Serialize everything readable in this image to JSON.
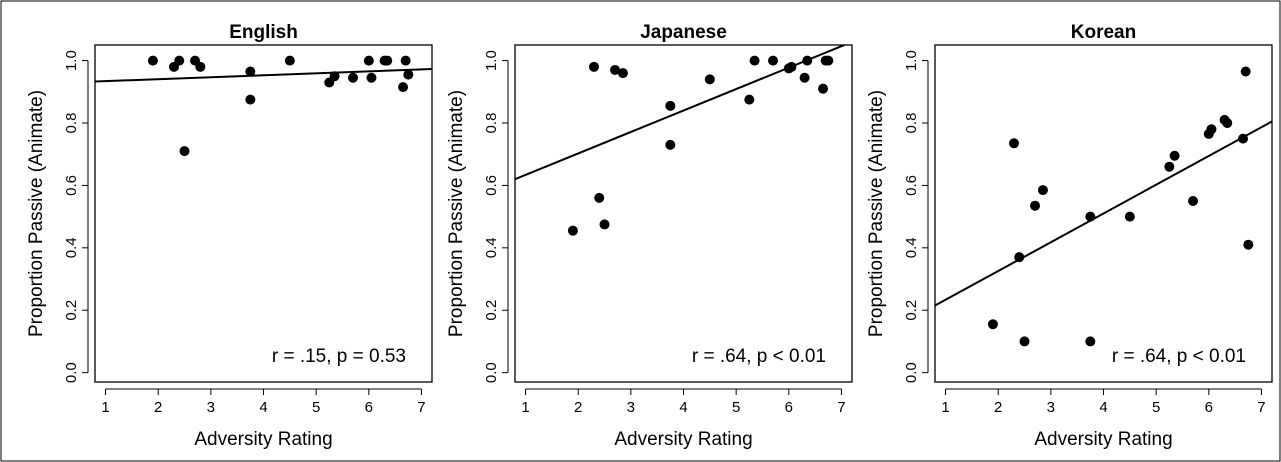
{
  "chart_data": [
    {
      "type": "scatter",
      "title": "English",
      "xlabel": "Adversity Rating",
      "ylabel": "Proportion Passive (Animate)",
      "xlim": [
        0.8,
        7.2
      ],
      "ylim": [
        -0.03,
        1.05
      ],
      "xticks": [
        "1",
        "2",
        "3",
        "4",
        "5",
        "6",
        "7"
      ],
      "yticks": [
        "0.0",
        "0.2",
        "0.4",
        "0.6",
        "0.8",
        "1.0"
      ],
      "annotation": "r = .15, p = 0.53",
      "fit": {
        "x": [
          0.8,
          7.2
        ],
        "y": [
          0.933,
          0.973
        ]
      },
      "points": [
        {
          "x": 1.9,
          "y": 1.0
        },
        {
          "x": 2.3,
          "y": 0.98
        },
        {
          "x": 2.4,
          "y": 1.0
        },
        {
          "x": 2.5,
          "y": 0.71
        },
        {
          "x": 2.7,
          "y": 1.0
        },
        {
          "x": 2.8,
          "y": 0.98
        },
        {
          "x": 3.75,
          "y": 0.965
        },
        {
          "x": 3.75,
          "y": 0.875
        },
        {
          "x": 4.5,
          "y": 1.0
        },
        {
          "x": 5.25,
          "y": 0.93
        },
        {
          "x": 5.35,
          "y": 0.95
        },
        {
          "x": 5.7,
          "y": 0.945
        },
        {
          "x": 6.0,
          "y": 1.0
        },
        {
          "x": 6.05,
          "y": 0.945
        },
        {
          "x": 6.3,
          "y": 1.0
        },
        {
          "x": 6.35,
          "y": 1.0
        },
        {
          "x": 6.65,
          "y": 0.915
        },
        {
          "x": 6.7,
          "y": 1.0
        },
        {
          "x": 6.75,
          "y": 0.955
        }
      ]
    },
    {
      "type": "scatter",
      "title": "Japanese",
      "xlabel": "Adversity Rating",
      "ylabel": "Proportion Passive (Animate)",
      "xlim": [
        0.8,
        7.2
      ],
      "ylim": [
        -0.03,
        1.05
      ],
      "xticks": [
        "1",
        "2",
        "3",
        "4",
        "5",
        "6",
        "7"
      ],
      "yticks": [
        "0.0",
        "0.2",
        "0.4",
        "0.6",
        "0.8",
        "1.0"
      ],
      "annotation": "r = .64, p < 0.01",
      "fit": {
        "x": [
          0.8,
          7.2
        ],
        "y": [
          0.62,
          1.06
        ]
      },
      "points": [
        {
          "x": 1.9,
          "y": 0.455
        },
        {
          "x": 2.3,
          "y": 0.98
        },
        {
          "x": 2.4,
          "y": 0.56
        },
        {
          "x": 2.5,
          "y": 0.475
        },
        {
          "x": 2.7,
          "y": 0.97
        },
        {
          "x": 2.85,
          "y": 0.96
        },
        {
          "x": 3.75,
          "y": 0.855
        },
        {
          "x": 3.75,
          "y": 0.73
        },
        {
          "x": 4.5,
          "y": 0.94
        },
        {
          "x": 5.25,
          "y": 0.875
        },
        {
          "x": 5.35,
          "y": 1.0
        },
        {
          "x": 5.7,
          "y": 1.0
        },
        {
          "x": 6.0,
          "y": 0.975
        },
        {
          "x": 6.05,
          "y": 0.98
        },
        {
          "x": 6.3,
          "y": 0.945
        },
        {
          "x": 6.35,
          "y": 1.0
        },
        {
          "x": 6.65,
          "y": 0.91
        },
        {
          "x": 6.7,
          "y": 1.0
        },
        {
          "x": 6.75,
          "y": 1.0
        }
      ]
    },
    {
      "type": "scatter",
      "title": "Korean",
      "xlabel": "Adversity Rating",
      "ylabel": "Proportion Passive (Animate)",
      "xlim": [
        0.8,
        7.2
      ],
      "ylim": [
        -0.03,
        1.05
      ],
      "xticks": [
        "1",
        "2",
        "3",
        "4",
        "5",
        "6",
        "7"
      ],
      "yticks": [
        "0.0",
        "0.2",
        "0.4",
        "0.6",
        "0.8",
        "1.0"
      ],
      "annotation": "r = .64, p < 0.01",
      "fit": {
        "x": [
          0.8,
          7.2
        ],
        "y": [
          0.215,
          0.805
        ]
      },
      "points": [
        {
          "x": 1.9,
          "y": 0.155
        },
        {
          "x": 2.3,
          "y": 0.735
        },
        {
          "x": 2.4,
          "y": 0.37
        },
        {
          "x": 2.5,
          "y": 0.1
        },
        {
          "x": 2.7,
          "y": 0.535
        },
        {
          "x": 2.85,
          "y": 0.585
        },
        {
          "x": 3.75,
          "y": 0.5
        },
        {
          "x": 3.75,
          "y": 0.1
        },
        {
          "x": 4.5,
          "y": 0.5
        },
        {
          "x": 5.25,
          "y": 0.66
        },
        {
          "x": 5.35,
          "y": 0.695
        },
        {
          "x": 5.7,
          "y": 0.55
        },
        {
          "x": 6.0,
          "y": 0.765
        },
        {
          "x": 6.05,
          "y": 0.78
        },
        {
          "x": 6.3,
          "y": 0.81
        },
        {
          "x": 6.35,
          "y": 0.8
        },
        {
          "x": 6.65,
          "y": 0.75
        },
        {
          "x": 6.7,
          "y": 0.965
        },
        {
          "x": 6.75,
          "y": 0.41
        }
      ]
    }
  ]
}
